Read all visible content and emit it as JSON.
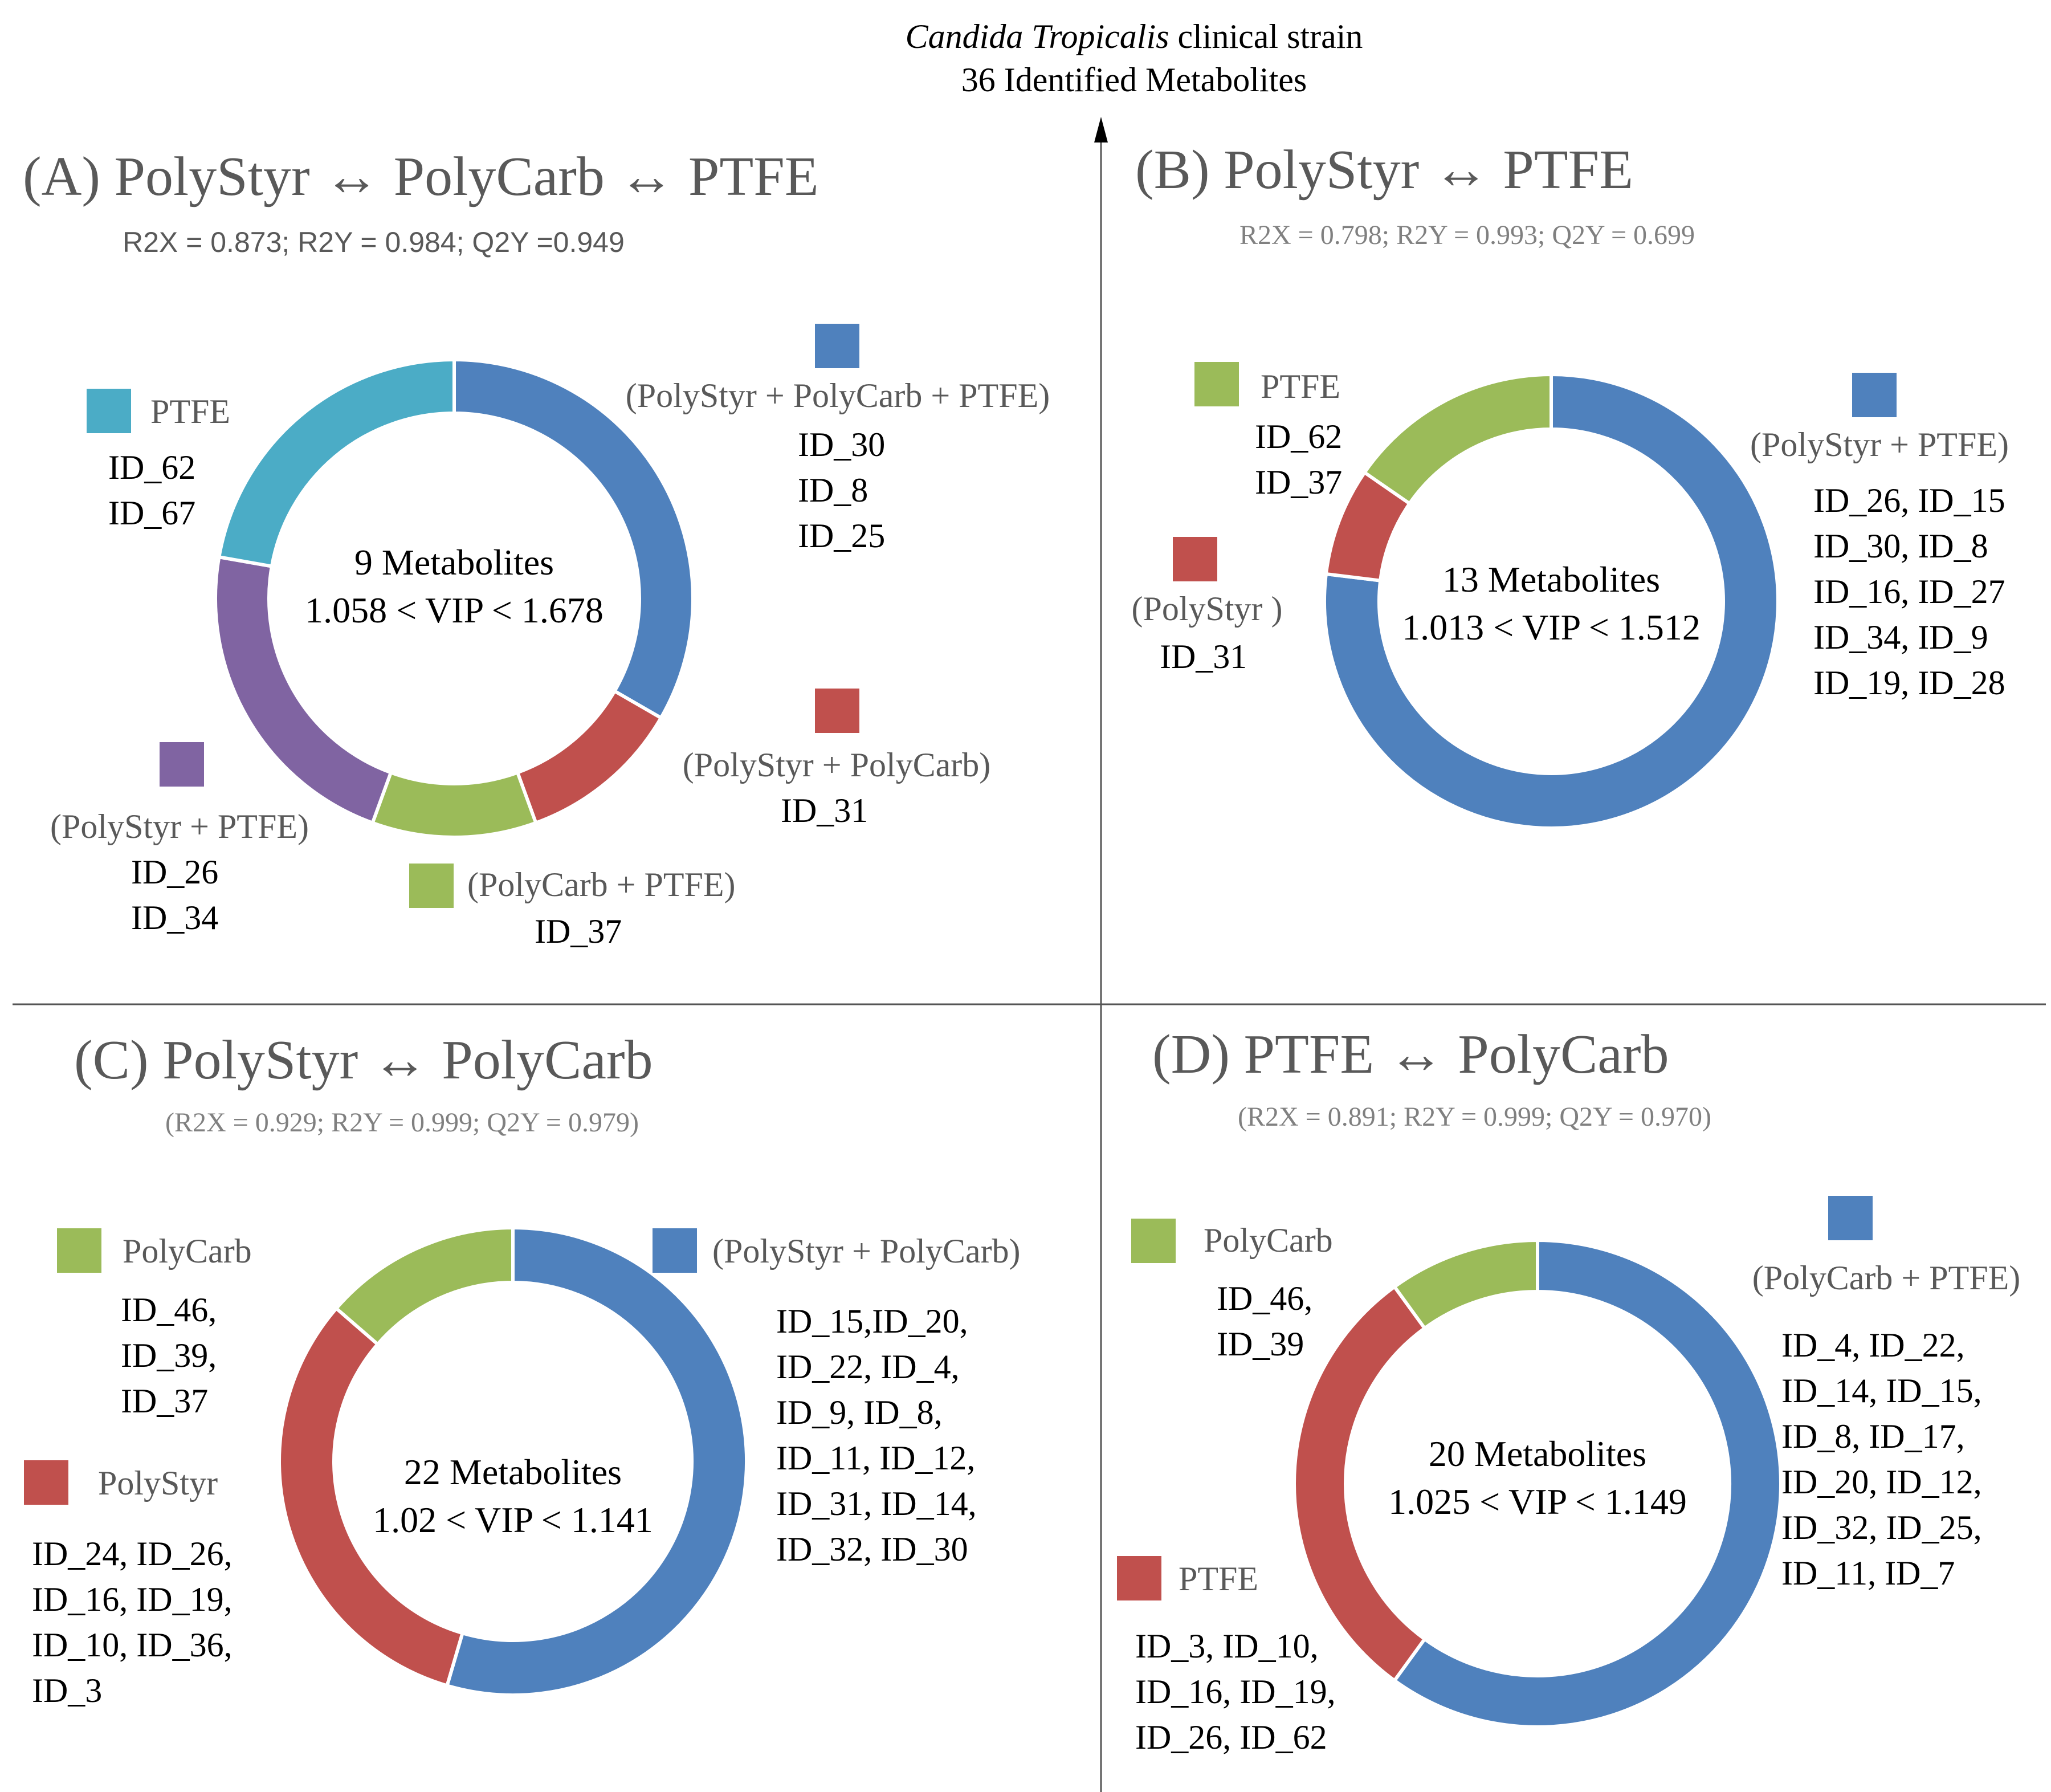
{
  "figure_title": {
    "line1_italic": "Candida Tropicalis",
    "line1_rest": " clinical strain",
    "line2": "36 Identified Metabolites"
  },
  "colors": {
    "blue": "#4F81BD",
    "red": "#C0504D",
    "green": "#9BBB59",
    "purple": "#8064A2",
    "teal": "#4BACC6",
    "axis": "#555555"
  },
  "chart_data": [
    {
      "type": "donut",
      "panel": "A",
      "title": "(A) PolyStyr ↔ PolyCarb ↔ PTFE",
      "stats": "R2X = 0.873; R2Y = 0.984; Q2Y =0.949",
      "center_line1": "9 Metabolites",
      "center_line2": "1.058 < VIP  < 1.678",
      "total": 9,
      "slices": [
        {
          "name": "(PolyStyr + PolyCarb + PTFE)",
          "value": 3,
          "color": "#4F81BD",
          "items": [
            "ID_30",
            "ID_8",
            "ID_25"
          ]
        },
        {
          "name": "(PolyStyr + PolyCarb)",
          "value": 1,
          "color": "#C0504D",
          "items": [
            "ID_31"
          ]
        },
        {
          "name": "(PolyCarb + PTFE)",
          "value": 1,
          "color": "#9BBB59",
          "items": [
            "ID_37"
          ]
        },
        {
          "name": "(PolyStyr + PTFE)",
          "value": 2,
          "color": "#8064A2",
          "items": [
            "ID_26",
            "ID_34"
          ]
        },
        {
          "name": "PTFE",
          "value": 2,
          "color": "#4BACC6",
          "items": [
            "ID_62",
            "ID_67"
          ]
        }
      ]
    },
    {
      "type": "donut",
      "panel": "B",
      "title": "(B) PolyStyr ↔ PTFE",
      "stats": "R2X = 0.798; R2Y = 0.993; Q2Y = 0.699",
      "center_line1": "13 Metabolites",
      "center_line2": "1.013 < VIP  < 1.512",
      "total": 13,
      "slices": [
        {
          "name": "(PolyStyr  + PTFE)",
          "value": 10,
          "color": "#4F81BD",
          "items": [
            "ID_26, ID_15",
            "ID_30, ID_8",
            "ID_16, ID_27",
            "ID_34, ID_9",
            "ID_19, ID_28"
          ]
        },
        {
          "name": "(PolyStyr )",
          "value": 1,
          "color": "#C0504D",
          "items": [
            "ID_31"
          ]
        },
        {
          "name": "PTFE",
          "value": 2,
          "color": "#9BBB59",
          "items": [
            "ID_62",
            "ID_37"
          ]
        }
      ]
    },
    {
      "type": "donut",
      "panel": "C",
      "title": "(C) PolyStyr ↔ PolyCarb",
      "stats": "(R2X = 0.929; R2Y = 0.999; Q2Y = 0.979)",
      "center_line1": "22 Metabolites",
      "center_line2": "1.02 < VIP < 1.141",
      "total": 22,
      "slices": [
        {
          "name": "(PolyStyr + PolyCarb)",
          "value": 12,
          "color": "#4F81BD",
          "items": [
            "ID_15,ID_20,",
            "ID_22, ID_4,",
            "ID_9, ID_8,",
            "ID_11, ID_12,",
            "ID_31, ID_14,",
            "ID_32, ID_30"
          ]
        },
        {
          "name": "PolyStyr",
          "value": 7,
          "color": "#C0504D",
          "items": [
            "ID_24, ID_26,",
            "ID_16, ID_19,",
            "ID_10, ID_36,",
            "ID_3"
          ]
        },
        {
          "name": "PolyCarb",
          "value": 3,
          "color": "#9BBB59",
          "items": [
            "ID_46,",
            "ID_39,",
            "ID_37"
          ]
        }
      ]
    },
    {
      "type": "donut",
      "panel": "D",
      "title": "(D)  PTFE ↔ PolyCarb",
      "stats": "(R2X = 0.891; R2Y = 0.999; Q2Y = 0.970)",
      "center_line1": "20 Metabolites",
      "center_line2": "1.025 < VIP  < 1.149",
      "total": 20,
      "slices": [
        {
          "name": "(PolyCarb  + PTFE)",
          "value": 12,
          "color": "#4F81BD",
          "items": [
            "ID_4, ID_22,",
            "ID_14, ID_15,",
            "ID_8, ID_17,",
            "ID_20, ID_12,",
            "ID_32, ID_25,",
            "ID_11, ID_7"
          ]
        },
        {
          "name": "PTFE",
          "value": 6,
          "color": "#C0504D",
          "items": [
            "ID_3, ID_10,",
            "ID_16, ID_19,",
            "ID_26, ID_62"
          ]
        },
        {
          "name": "PolyCarb",
          "value": 2,
          "color": "#9BBB59",
          "items": [
            "ID_46,",
            "ID_39"
          ]
        }
      ]
    }
  ]
}
